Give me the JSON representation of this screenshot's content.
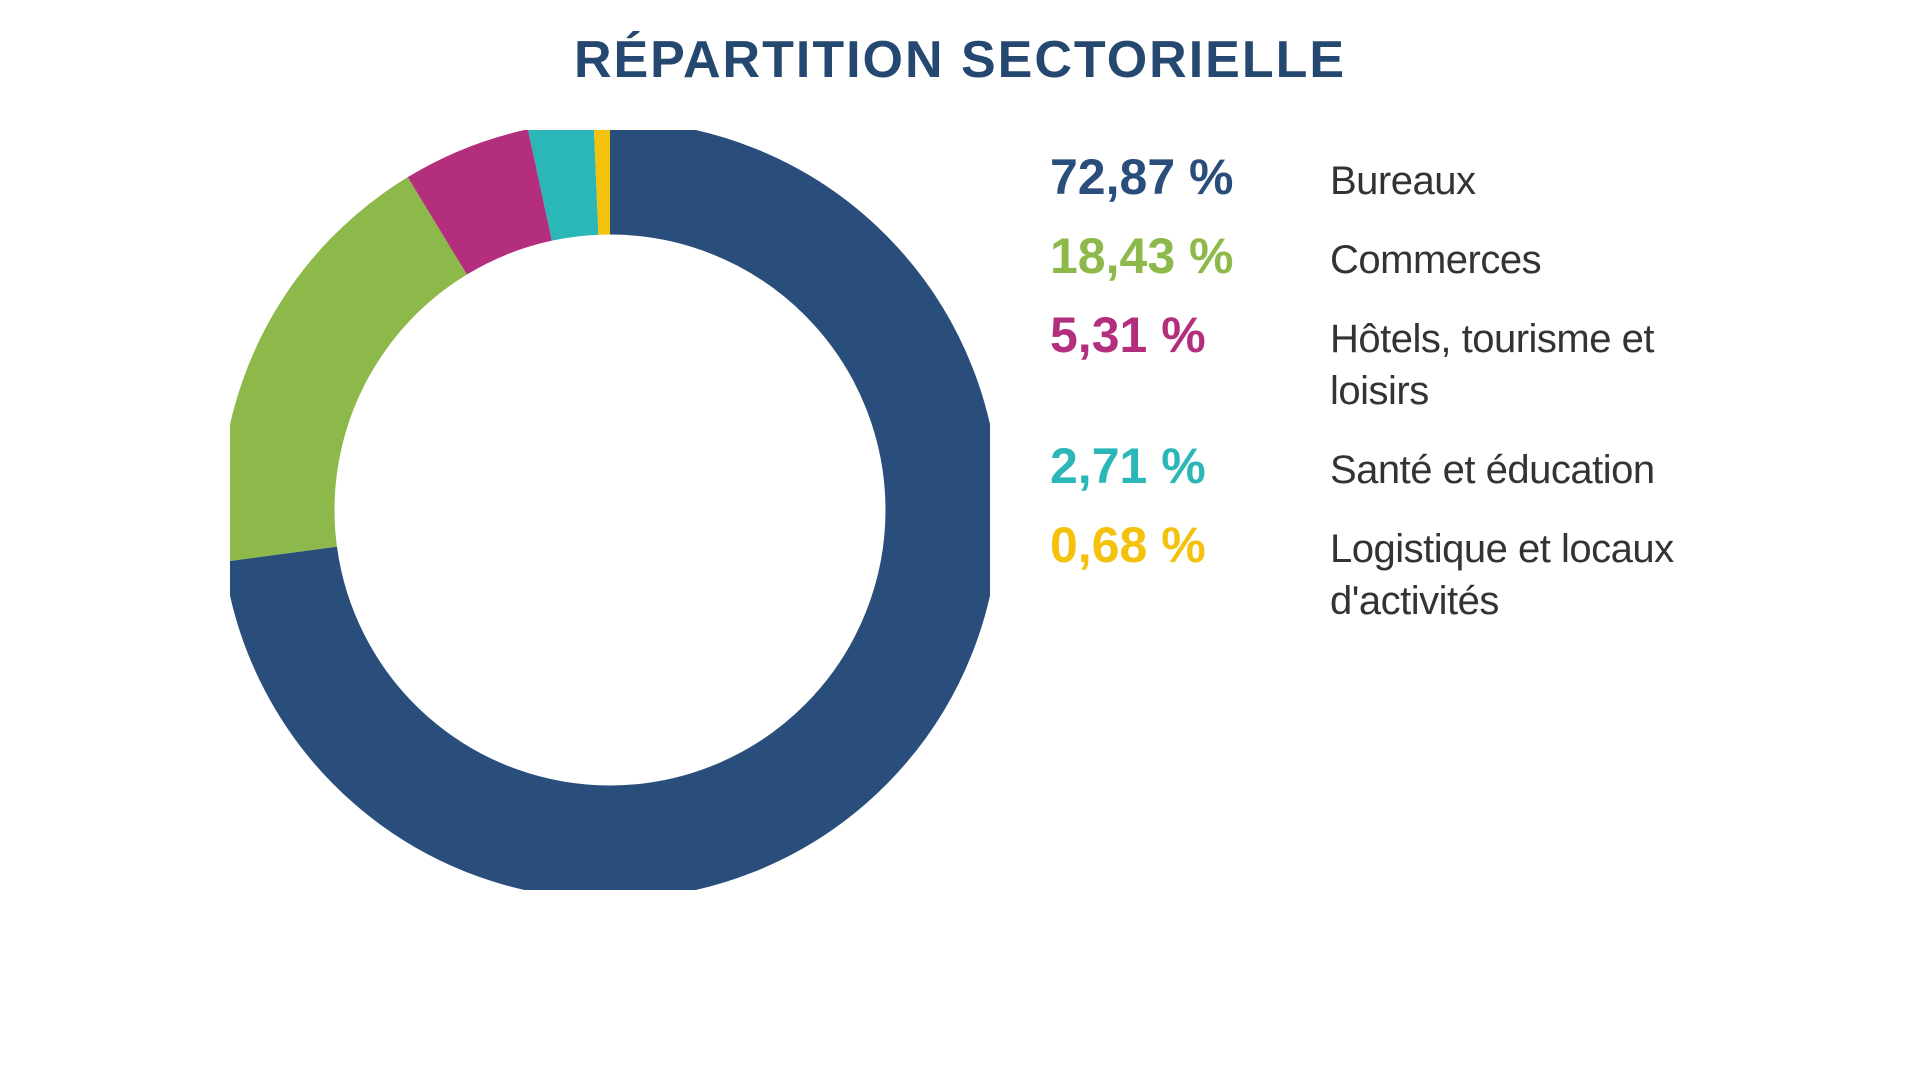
{
  "chart": {
    "type": "donut",
    "title": "RÉPARTITION SECTORIELLE",
    "title_color": "#254870",
    "title_fontsize": 52,
    "title_fontweight": 700,
    "background_color": "#ffffff",
    "radius": 350,
    "stroke_width": 120,
    "start_angle_deg": -90,
    "segments": [
      {
        "label": "Bureaux",
        "value": 72.87,
        "pct_text": "72,87 %",
        "color": "#2a4e7c"
      },
      {
        "label": "Commerces",
        "value": 18.43,
        "pct_text": "18,43 %",
        "color": "#8db84a"
      },
      {
        "label": "Hôtels, tourisme et loisirs",
        "value": 5.31,
        "pct_text": "5,31 %",
        "color": "#b42e7e"
      },
      {
        "label": "Santé et éducation",
        "value": 2.71,
        "pct_text": "2,71 %",
        "color": "#2bb7b8"
      },
      {
        "label": "Logistique et locaux d'activités",
        "value": 0.68,
        "pct_text": "0,68 %",
        "color": "#f4c20d"
      }
    ],
    "legend_pct_fontsize": 50,
    "legend_label_fontsize": 40,
    "legend_label_color": "#333333"
  }
}
